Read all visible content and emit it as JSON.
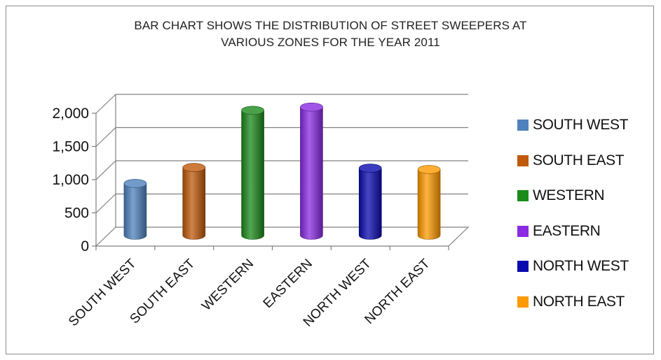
{
  "chart_data": {
    "type": "bar",
    "title_lines": [
      "BAR CHART SHOWS THE DISTRIBUTION OF STREET SWEEPERS AT",
      "VARIOUS ZONES FOR THE YEAR 2011"
    ],
    "categories": [
      "SOUTH WEST",
      "SOUTH EAST",
      "WESTERN",
      "EASTERN",
      "NORTH WEST",
      "NORTH EAST"
    ],
    "values": [
      780,
      1020,
      1880,
      1930,
      1010,
      990
    ],
    "colors": [
      "#4f81bd",
      "#c0590a",
      "#1b8a1b",
      "#8a2be2",
      "#0a0ab0",
      "#ff9a00"
    ],
    "ylim": [
      0,
      2000
    ],
    "yticks": [
      0,
      500,
      1000,
      1500,
      2000
    ],
    "ytick_labels": [
      "0",
      "500",
      "1,000",
      "1,500",
      "2,000"
    ],
    "grid": true,
    "legend_position": "right",
    "legend": [
      "SOUTH WEST",
      "SOUTH EAST",
      "WESTERN",
      "EASTERN",
      "NORTH WEST",
      "NORTH EAST"
    ]
  }
}
